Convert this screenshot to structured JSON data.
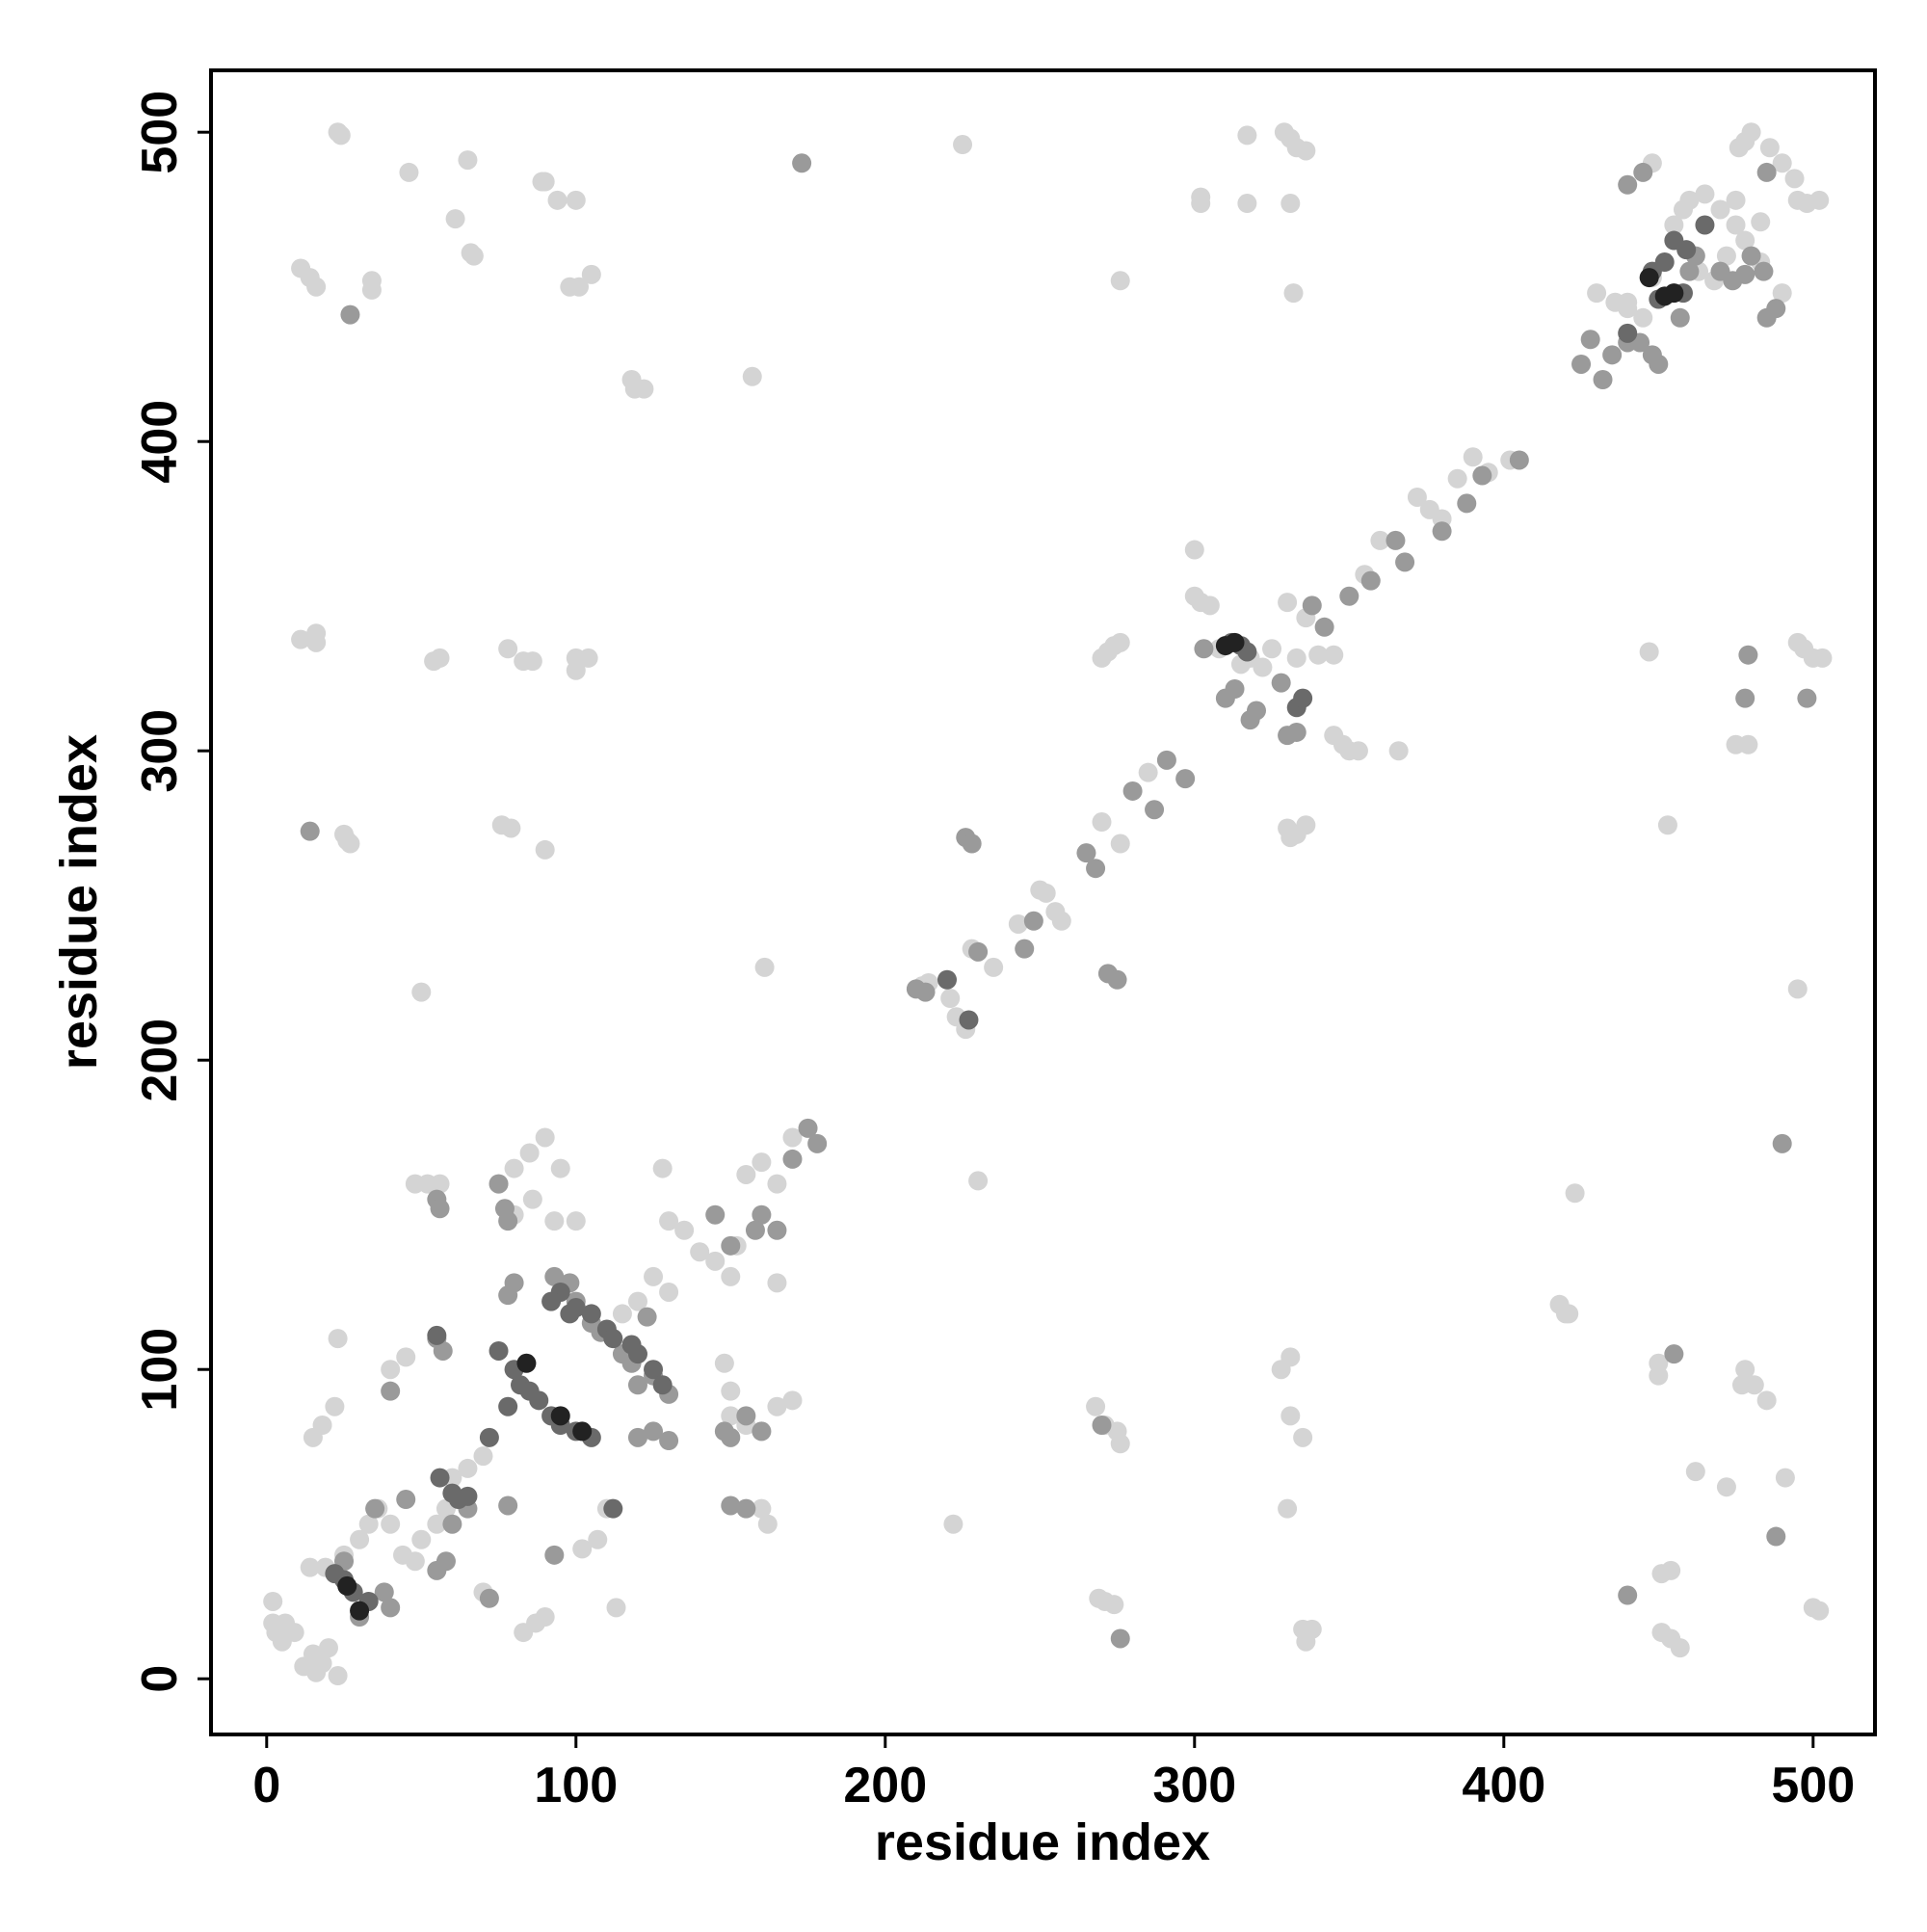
{
  "chart_data": {
    "type": "scatter",
    "xlabel": "residue index",
    "ylabel": "residue index",
    "xlim": [
      -18,
      520
    ],
    "ylim": [
      -18,
      520
    ],
    "xticks": [
      0,
      100,
      200,
      300,
      400,
      500
    ],
    "yticks": [
      0,
      100,
      200,
      300,
      400,
      500
    ],
    "series": [
      {
        "color": "#d4d4d4",
        "x": [
          23,
          24,
          46,
          65,
          89,
          90,
          94,
          100,
          61,
          66,
          67,
          11,
          14,
          16,
          34,
          34,
          98,
          101,
          105,
          118,
          119,
          122,
          157,
          225,
          276,
          302,
          302,
          317,
          317,
          331,
          332,
          329,
          331,
          333,
          336,
          11,
          16,
          16,
          54,
          56,
          78,
          83,
          86,
          100,
          100,
          104,
          76,
          79,
          25,
          26,
          27,
          90,
          50,
          161,
          230,
          2,
          2,
          3,
          5,
          6,
          9,
          12,
          15,
          16,
          18,
          20,
          14,
          19,
          25,
          30,
          33,
          36,
          40,
          44,
          48,
          50,
          55,
          58,
          60,
          65,
          70,
          48,
          52,
          56,
          75,
          80,
          85,
          90,
          80,
          86,
          93,
          100,
          128,
          130,
          135,
          140,
          145,
          150,
          152,
          155,
          160,
          165,
          170,
          125,
          130,
          120,
          115,
          15,
          18,
          22,
          23,
          40,
          45,
          95,
          150,
          150,
          155,
          160,
          165,
          170,
          160,
          162,
          102,
          107,
          110,
          113,
          83,
          87,
          90,
          70,
          23,
          165,
          148,
          212,
          214,
          221,
          223,
          226,
          228,
          235,
          243,
          250,
          252,
          255,
          257,
          270,
          276,
          285,
          300,
          300,
          302,
          305,
          308,
          315,
          318,
          322,
          325,
          333,
          330,
          336,
          330,
          331,
          333,
          336,
          270,
          272,
          274,
          276,
          345,
          348,
          350,
          353,
          366,
          360,
          372,
          376,
          380,
          385,
          390,
          395,
          402,
          340,
          345,
          355,
          430,
          436,
          440,
          445,
          448,
          455,
          458,
          460,
          465,
          470,
          475,
          478,
          480,
          483,
          476,
          478,
          480,
          486,
          490,
          494,
          495,
          498,
          502,
          463,
          468,
          472,
          483,
          475,
          490,
          448,
          440,
          418,
          420,
          423,
          421,
          451,
          454,
          451,
          454,
          457,
          450,
          450,
          462,
          472,
          478,
          477,
          481,
          485,
          491,
          500,
          502,
          495,
          495,
          497,
          500,
          503,
          475,
          479,
          453,
          447,
          268,
          271,
          275,
          276,
          269,
          271,
          274,
          328,
          331,
          331,
          335,
          330,
          335,
          338,
          336,
          222
        ],
        "values": [
          500,
          499,
          487,
          491,
          484,
          484,
          478,
          478,
          472,
          461,
          460,
          456,
          453,
          450,
          452,
          449,
          450,
          450,
          454,
          420,
          417,
          417,
          421,
          496,
          452,
          479,
          477,
          499,
          477,
          477,
          448,
          500,
          498,
          495,
          494,
          336,
          338,
          335,
          329,
          330,
          333,
          329,
          329,
          330,
          326,
          330,
          276,
          275,
          273,
          271,
          270,
          268,
          222,
          230,
          161,
          25,
          18,
          15,
          12,
          18,
          15,
          4,
          8,
          2,
          5,
          10,
          36,
          36,
          40,
          45,
          50,
          55,
          50,
          40,
          38,
          45,
          50,
          55,
          65,
          68,
          72,
          160,
          160,
          160,
          160,
          165,
          170,
          175,
          150,
          155,
          148,
          148,
          165,
          148,
          145,
          138,
          135,
          130,
          140,
          163,
          167,
          160,
          175,
          130,
          125,
          122,
          118,
          78,
          82,
          88,
          110,
          100,
          104,
          165,
          93,
          85,
          82,
          80,
          88,
          90,
          55,
          50,
          42,
          45,
          55,
          23,
          15,
          18,
          20,
          28,
          1,
          128,
          102,
          224,
          225,
          220,
          214,
          210,
          236,
          230,
          244,
          255,
          254,
          248,
          245,
          277,
          270,
          293,
          365,
          350,
          348,
          347,
          333,
          328,
          330,
          327,
          333,
          330,
          348,
          343,
          275,
          272,
          273,
          276,
          330,
          332,
          334,
          335,
          305,
          302,
          300,
          300,
          300,
          368,
          382,
          378,
          375,
          388,
          395,
          390,
          394,
          331,
          331,
          357,
          448,
          445,
          443,
          440,
          453,
          470,
          475,
          478,
          480,
          475,
          470,
          465,
          460,
          458,
          495,
          497,
          500,
          495,
          490,
          485,
          478,
          477,
          478,
          455,
          452,
          460,
          471,
          478,
          448,
          490,
          445,
          121,
          118,
          157,
          118,
          34,
          35,
          15,
          13,
          10,
          102,
          98,
          67,
          62,
          100,
          95,
          95,
          90,
          65,
          23,
          22,
          223,
          335,
          333,
          330,
          330,
          302,
          302,
          276,
          332,
          88,
          82,
          80,
          76,
          26,
          25,
          24,
          100,
          104,
          85,
          78,
          55,
          16,
          16,
          12,
          50
        ]
      },
      {
        "color": "#9a9a9a",
        "x": [
          27,
          173,
          14,
          75,
          77,
          78,
          78,
          80,
          55,
          56,
          38,
          40,
          30,
          25,
          35,
          45,
          55,
          58,
          60,
          65,
          72,
          78,
          93,
          40,
          55,
          57,
          93,
          98,
          100,
          105,
          108,
          115,
          118,
          120,
          125,
          130,
          120,
          125,
          130,
          148,
          150,
          155,
          160,
          150,
          155,
          160,
          165,
          170,
          175,
          178,
          145,
          150,
          158,
          123,
          210,
          213,
          226,
          228,
          230,
          245,
          248,
          265,
          268,
          280,
          287,
          291,
          297,
          303,
          310,
          313,
          318,
          320,
          328,
          330,
          333,
          338,
          342,
          350,
          357,
          365,
          368,
          380,
          388,
          393,
          405,
          272,
          275,
          276,
          270,
          440,
          455,
          478,
          479,
          490,
          488,
          498,
          485,
          488,
          425,
          428,
          432,
          435,
          440,
          444,
          448,
          450,
          440,
          445,
          457,
          460,
          462,
          470,
          474,
          478,
          480,
          485,
          484
        ],
        "values": [
          441,
          490,
          274,
          160,
          152,
          148,
          124,
          128,
          155,
          152,
          28,
          23,
          20,
          38,
          55,
          58,
          35,
          38,
          50,
          55,
          26,
          56,
          40,
          93,
          110,
          106,
          130,
          128,
          122,
          115,
          112,
          105,
          102,
          95,
          98,
          92,
          78,
          80,
          77,
          80,
          78,
          85,
          80,
          56,
          55,
          150,
          145,
          168,
          178,
          173,
          150,
          140,
          145,
          117,
          223,
          222,
          272,
          270,
          235,
          236,
          245,
          267,
          262,
          287,
          281,
          297,
          291,
          333,
          317,
          320,
          310,
          313,
          322,
          305,
          306,
          347,
          340,
          350,
          355,
          368,
          361,
          371,
          380,
          389,
          394,
          228,
          226,
          13,
          82,
          27,
          105,
          317,
          331,
          173,
          46,
          317,
          440,
          443,
          425,
          433,
          420,
          428,
          432,
          432,
          428,
          425,
          483,
          487,
          440,
          455,
          460,
          455,
          452,
          454,
          460,
          487,
          455
        ]
      },
      {
        "color": "#6a6a6a",
        "x": [
          55,
          75,
          80,
          82,
          85,
          88,
          92,
          95,
          100,
          105,
          95,
          100,
          105,
          110,
          112,
          118,
          120,
          125,
          128,
          92,
          98,
          22,
          25,
          28,
          33,
          56,
          60,
          62,
          65,
          72,
          78,
          227,
          220,
          312,
          315,
          317,
          333,
          335,
          440,
          448,
          452,
          455,
          459,
          465,
          450,
          458,
          112
        ],
        "values": [
          111,
          106,
          100,
          95,
          93,
          90,
          85,
          82,
          80,
          78,
          125,
          120,
          118,
          113,
          110,
          108,
          105,
          100,
          95,
          122,
          118,
          34,
          32,
          28,
          25,
          65,
          60,
          58,
          59,
          78,
          88,
          213,
          226,
          335,
          334,
          332,
          314,
          317,
          435,
          455,
          458,
          465,
          462,
          470,
          446,
          448,
          55
        ]
      },
      {
        "color": "#222222",
        "x": [
          26,
          30,
          84,
          95,
          102,
          310,
          313,
          447,
          452,
          455
        ],
        "values": [
          30,
          22,
          102,
          85,
          80,
          334,
          335,
          453,
          447,
          448
        ]
      }
    ]
  }
}
